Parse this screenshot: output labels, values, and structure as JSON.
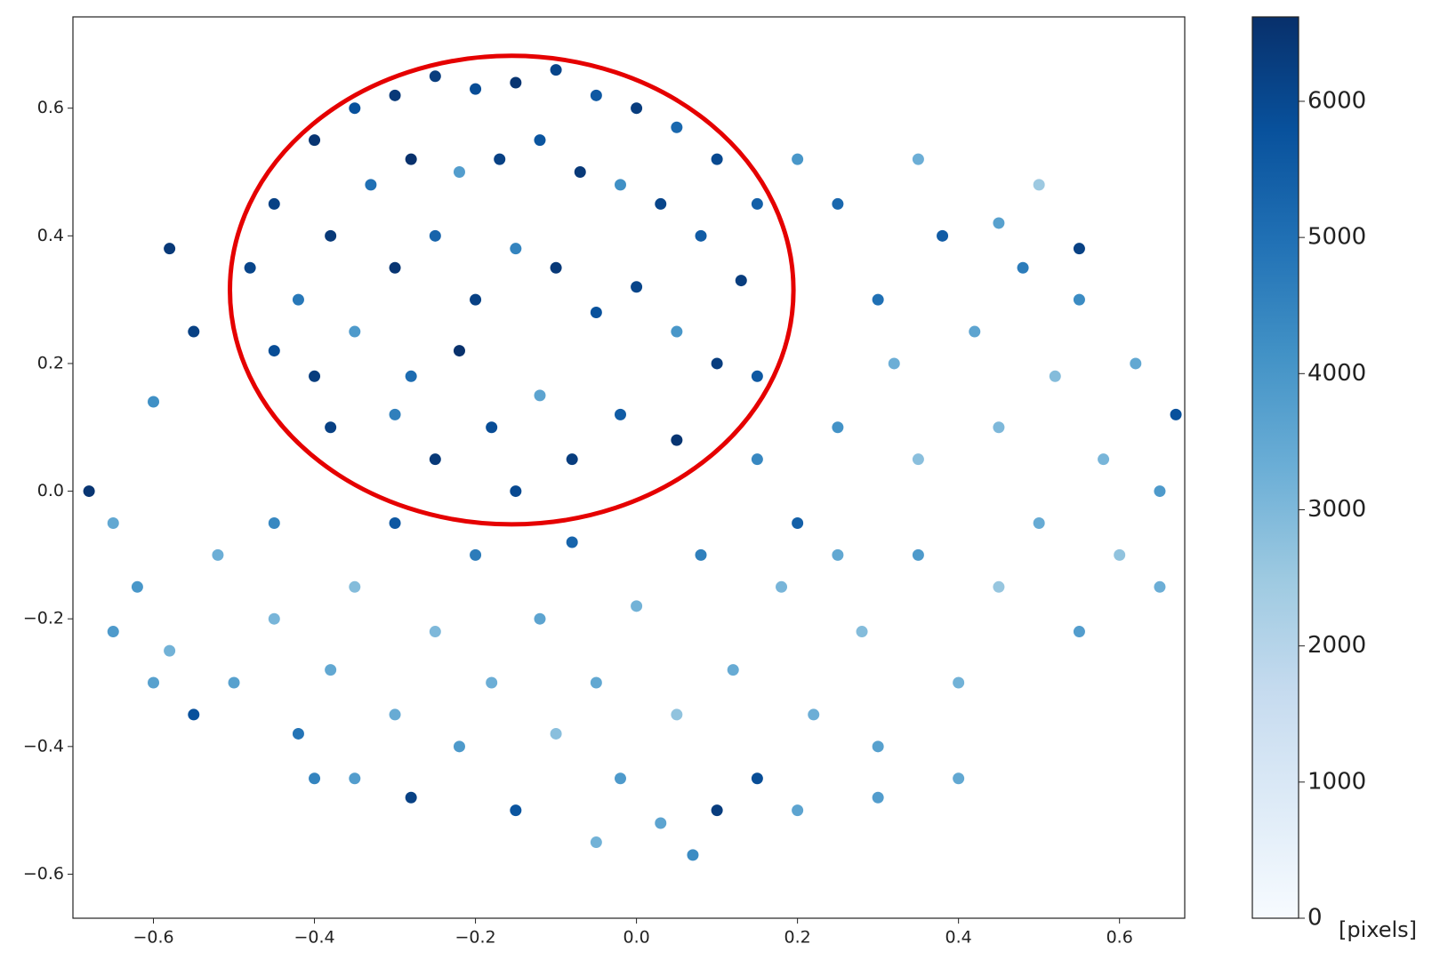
{
  "chart_data": {
    "type": "scatter",
    "xlim": [
      -0.7,
      0.681
    ],
    "ylim": [
      -0.669,
      0.743
    ],
    "xticks": [
      {
        "value": -0.6,
        "label": "−0.6"
      },
      {
        "value": -0.4,
        "label": "−0.4"
      },
      {
        "value": -0.2,
        "label": "−0.2"
      },
      {
        "value": 0.0,
        "label": "0.0"
      },
      0.2,
      0.4,
      0.6
    ],
    "yticks": [
      {
        "value": -0.6,
        "label": "−0.6"
      },
      {
        "value": -0.4,
        "label": "−0.4"
      },
      {
        "value": -0.2,
        "label": "−0.2"
      },
      {
        "value": 0.0,
        "label": "0.0"
      },
      0.2,
      0.4,
      0.6
    ],
    "x": [
      -0.45,
      -0.4,
      -0.35,
      -0.3,
      -0.25,
      -0.2,
      -0.15,
      -0.1,
      -0.05,
      0.0,
      0.05,
      0.1,
      0.15,
      -0.48,
      -0.42,
      -0.38,
      -0.33,
      -0.28,
      -0.22,
      -0.17,
      -0.12,
      -0.07,
      -0.02,
      0.03,
      0.08,
      0.13,
      -0.45,
      -0.4,
      -0.35,
      -0.3,
      -0.25,
      -0.2,
      -0.15,
      -0.1,
      -0.05,
      0.0,
      0.05,
      0.1,
      0.15,
      -0.38,
      -0.3,
      -0.25,
      -0.18,
      -0.12,
      -0.08,
      -0.02,
      0.05,
      -0.15,
      -0.22,
      -0.28,
      -0.58,
      -0.55,
      -0.6,
      -0.68,
      -0.65,
      -0.62,
      -0.58,
      -0.55,
      -0.5,
      -0.52,
      -0.45,
      -0.45,
      -0.42,
      -0.38,
      -0.35,
      -0.35,
      -0.3,
      -0.3,
      -0.28,
      -0.25,
      -0.22,
      -0.2,
      -0.18,
      -0.15,
      -0.12,
      -0.1,
      -0.08,
      -0.05,
      -0.02,
      0.0,
      0.03,
      0.05,
      0.07,
      0.08,
      0.12,
      0.15,
      0.18,
      0.2,
      0.22,
      0.25,
      0.28,
      0.3,
      0.3,
      0.32,
      0.35,
      0.35,
      0.38,
      0.4,
      0.42,
      0.45,
      0.45,
      0.48,
      0.5,
      0.52,
      0.55,
      0.55,
      0.58,
      0.6,
      0.62,
      0.65,
      0.65,
      0.67,
      0.25,
      0.2,
      0.35,
      0.45,
      0.55,
      0.4,
      0.1,
      -0.4,
      -0.6,
      -0.05,
      0.2,
      0.5,
      0.3,
      -0.65,
      0.15,
      0.25
    ],
    "values": [
      0.45,
      0.55,
      0.6,
      0.62,
      0.65,
      0.63,
      0.64,
      0.66,
      0.62,
      0.6,
      0.57,
      0.52,
      0.45,
      0.35,
      0.3,
      0.4,
      0.48,
      0.52,
      0.5,
      0.52,
      0.55,
      0.5,
      0.48,
      0.45,
      0.4,
      0.33,
      0.22,
      0.18,
      0.25,
      0.35,
      0.4,
      0.3,
      0.38,
      0.35,
      0.28,
      0.32,
      0.25,
      0.2,
      0.18,
      0.1,
      0.12,
      0.05,
      0.1,
      0.15,
      0.05,
      0.12,
      0.08,
      0.0,
      0.22,
      0.18,
      0.38,
      0.25,
      0.14,
      0.0,
      -0.05,
      -0.15,
      -0.25,
      -0.35,
      -0.3,
      -0.1,
      -0.05,
      -0.2,
      -0.38,
      -0.28,
      -0.15,
      -0.45,
      -0.05,
      -0.35,
      -0.48,
      -0.22,
      -0.4,
      -0.1,
      -0.3,
      -0.5,
      -0.2,
      -0.38,
      -0.08,
      -0.3,
      -0.45,
      -0.18,
      -0.52,
      -0.35,
      -0.57,
      -0.1,
      -0.28,
      -0.45,
      -0.15,
      -0.05,
      -0.35,
      0.1,
      -0.22,
      0.3,
      -0.4,
      0.2,
      0.05,
      -0.1,
      0.4,
      -0.3,
      0.25,
      0.1,
      -0.15,
      0.35,
      -0.05,
      0.18,
      -0.22,
      0.3,
      0.05,
      -0.1,
      0.2,
      0.0,
      -0.15,
      0.12,
      0.45,
      0.52,
      0.52,
      0.42,
      0.38,
      -0.45,
      -0.5,
      -0.45,
      -0.3,
      -0.55,
      -0.5,
      0.48,
      -0.48,
      -0.22,
      0.05,
      -0.1
    ],
    "color_values": [
      6200,
      6500,
      5800,
      6400,
      6300,
      5900,
      6500,
      6100,
      5600,
      6300,
      5200,
      6000,
      5400,
      6100,
      4800,
      6400,
      5000,
      6600,
      3800,
      6200,
      5700,
      6400,
      4200,
      6100,
      5500,
      6300,
      5900,
      6300,
      3900,
      6500,
      5300,
      6200,
      4500,
      6400,
      5800,
      6100,
      4000,
      6300,
      5600,
      6200,
      4600,
      6400,
      5900,
      3600,
      6300,
      5500,
      6500,
      6000,
      6600,
      5100,
      6400,
      6200,
      4200,
      6500,
      3500,
      4000,
      3200,
      5800,
      3700,
      3300,
      4400,
      3100,
      4900,
      3500,
      2900,
      3800,
      5600,
      3400,
      6200,
      3000,
      3900,
      4700,
      3300,
      5700,
      3600,
      2800,
      5300,
      3500,
      3900,
      3200,
      3600,
      2700,
      4300,
      4600,
      3400,
      5900,
      3100,
      5400,
      3300,
      4100,
      2900,
      5000,
      3700,
      3300,
      2800,
      3900,
      5500,
      3200,
      3600,
      3000,
      2600,
      4700,
      3400,
      2900,
      3800,
      4300,
      3100,
      2700,
      3500,
      3900,
      3300,
      5800,
      5200,
      4000,
      3300,
      3700,
      6200,
      3500,
      6300,
      4500,
      3700,
      3200,
      3600,
      2500,
      3800,
      3900,
      4400,
      3500
    ],
    "colormap": [
      "#f7fbff",
      "#deebf7",
      "#c6dbef",
      "#9ecae1",
      "#6baed6",
      "#4292c6",
      "#2171b5",
      "#08519c",
      "#08306b"
    ],
    "clim": [
      0,
      6620
    ],
    "cticks": [
      0,
      1000,
      2000,
      3000,
      4000,
      5000,
      6000
    ],
    "clabel": "[pixels]",
    "highlight": {
      "cx": -0.155,
      "cy": 0.315,
      "rx": 0.35,
      "ry": 0.367,
      "color": "#e50000"
    }
  }
}
